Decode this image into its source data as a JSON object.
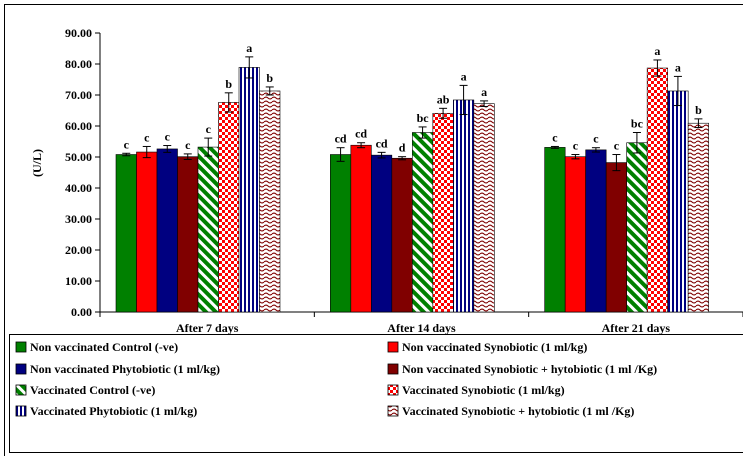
{
  "chart_data": {
    "type": "bar",
    "ylabel": "(U/L)",
    "ylim": [
      0,
      90
    ],
    "yticks": [
      "0.00",
      "10.00",
      "20.00",
      "30.00",
      "40.00",
      "50.00",
      "60.00",
      "70.00",
      "80.00",
      "90.00"
    ],
    "categories": [
      "After 7 days",
      "After 14 days",
      "After 21 days"
    ],
    "grid": false,
    "legend_position": "bottom",
    "series": [
      {
        "name": "Non vaccinated Control (-ve)",
        "color": "#008000",
        "pattern": "solid",
        "values": [
          50.8,
          50.8,
          53.1
        ],
        "errors": [
          0.4,
          2.2,
          0.3
        ],
        "labels": [
          "c",
          "cd",
          "c"
        ]
      },
      {
        "name": "Non vaccinated Synobiotic (1 ml/kg)",
        "color": "#ff0000",
        "pattern": "solid",
        "values": [
          51.6,
          53.8,
          50.1
        ],
        "errors": [
          1.8,
          0.8,
          0.7
        ],
        "labels": [
          "c",
          "cd",
          "c"
        ]
      },
      {
        "name": "Non vaccinated Phytobiotic (1 ml/kg)",
        "color": "#000080",
        "pattern": "solid",
        "values": [
          52.6,
          50.6,
          52.3
        ],
        "errors": [
          1.1,
          0.9,
          0.7
        ],
        "labels": [
          "c",
          "cd",
          "c"
        ]
      },
      {
        "name": "Non vaccinated Synobiotic + hytobiotic (1 ml /Kg)",
        "color": "#800000",
        "pattern": "solid",
        "values": [
          50.1,
          49.6,
          48.2
        ],
        "errors": [
          0.9,
          0.5,
          2.6
        ],
        "labels": [
          "c",
          "d",
          "c"
        ]
      },
      {
        "name": "Vaccinated Control (-ve)",
        "color": "#008000",
        "pattern": "diagonal",
        "values": [
          53.2,
          57.9,
          54.6
        ],
        "errors": [
          2.9,
          1.8,
          3.3
        ],
        "labels": [
          "c",
          "bc",
          "bc"
        ]
      },
      {
        "name": "Vaccinated Synobiotic (1 ml/kg)",
        "color": "#ff0000",
        "pattern": "checker",
        "values": [
          67.6,
          64.1,
          78.7
        ],
        "errors": [
          3.1,
          1.6,
          2.6
        ],
        "labels": [
          "b",
          "ab",
          "a"
        ]
      },
      {
        "name": "Vaccinated Phytobiotic (1 ml/kg)",
        "color": "#000080",
        "pattern": "vertical",
        "values": [
          78.9,
          68.4,
          71.3
        ],
        "errors": [
          3.4,
          4.7,
          4.7
        ],
        "labels": [
          "a",
          "a",
          "a"
        ]
      },
      {
        "name": "Vaccinated Synobiotic + hytobiotic (1 ml /Kg)",
        "color": "#800000",
        "pattern": "wave",
        "values": [
          71.3,
          67.2,
          60.9
        ],
        "errors": [
          1.3,
          0.9,
          1.4
        ],
        "labels": [
          "b",
          "a",
          "b"
        ]
      }
    ]
  }
}
